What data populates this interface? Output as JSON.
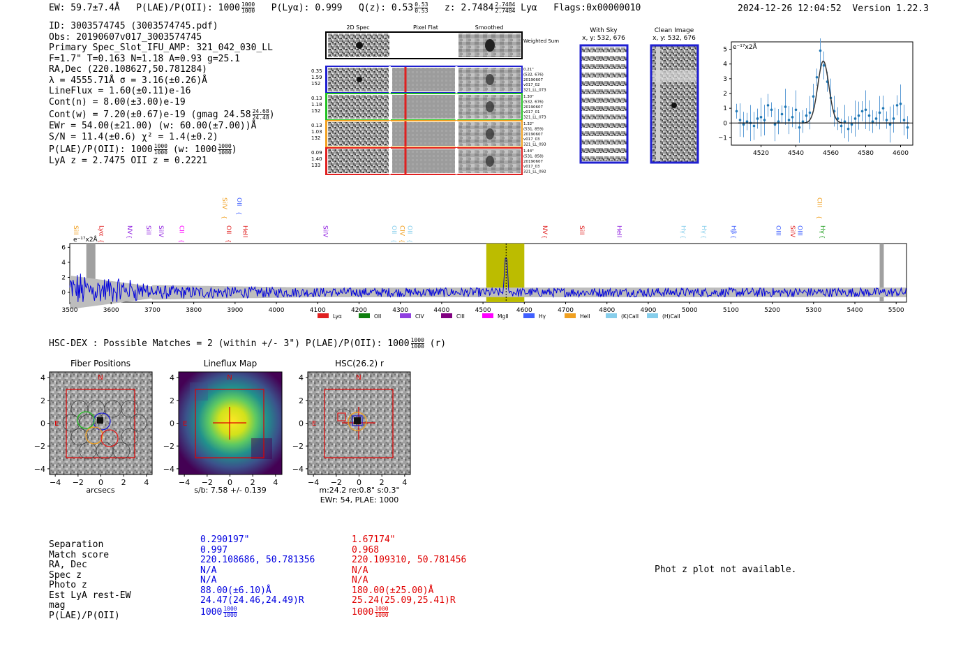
{
  "header": {
    "ew": "EW: 59.7±7.4Å",
    "plae_label": "P(LAE)/P(OII): 1000",
    "plae_hi": "1000",
    "plae_lo": "1000",
    "plya": "P(Lyα): 0.999",
    "qz_label": "Q(z): 0.53",
    "qz_hi": "0.53",
    "qz_lo": "0.53",
    "z_label": "z: 2.7484",
    "z_hi": "2.7484",
    "z_lo": "2.7484",
    "z_line": "Lyα",
    "flags": "Flags:0x00000010",
    "timestamp": "2024-12-26 12:04:52",
    "version": "Version 1.22.3"
  },
  "info": {
    "id": "ID: 3003574745 (3003574745.pdf)",
    "obs": "Obs: 20190607v017_3003574745",
    "primary": "Primary Spec_Slot_IFU_AMP: 321_042_030_LL",
    "params": "F=1.7\"  T=0.163  N=1.18  A=0.93  g=25.1",
    "radec": "RA,Dec (220.108627,50.781284)",
    "lambda": "λ = 4555.71Å  σ = 3.16(±0.26)Å",
    "lineflux": "LineFlux = 1.60(±0.11)e-16",
    "cont_n": "Cont(n) = 8.00(±3.00)e-19",
    "cont_w": "Cont(w) = 7.20(±0.67)e-19 (gmag 24.58",
    "gmag_hi": "24.68",
    "gmag_lo": "24.48",
    "ewr": "EWr = 54.00(±21.00) (w: 60.00(±7.00))Å",
    "sn": "S/N = 11.4(±0.6)  χ² = 1.4(±0.2)",
    "plae": "P(LAE)/P(OII): 1000",
    "plae_hi": "1000",
    "plae_lo": "1000",
    "plae_w": "(w: 1000",
    "plae_w_hi": "1000",
    "plae_w_lo": "1000",
    "lya_z": "LyA z = 2.7475  OII z = 0.2221"
  },
  "cutouts": {
    "col_labels": [
      "2D Spec",
      "Pixel Flat",
      "Smoothed"
    ],
    "weighted_sum": "Weighted Sum",
    "rows": [
      {
        "left": [
          "0.35",
          "1.59",
          "152"
        ],
        "right": [
          "0.21\"",
          "(532, 676)",
          "20190607",
          "v017_02",
          "321_LL_073"
        ],
        "color": "#1f1fd0"
      },
      {
        "left": [
          "0.13",
          "1.18",
          "152"
        ],
        "right": [
          "1.30\"",
          "(532, 676)",
          "20190607",
          "v017_01",
          "321_LL_073"
        ],
        "color": "#22c022"
      },
      {
        "left": [
          "0.13",
          "1.03",
          "132"
        ],
        "right": [
          "1.32\"",
          "(531, 859)",
          "20190607",
          "v017_03",
          "321_LL_093"
        ],
        "color": "#f0a020"
      },
      {
        "left": [
          "0.09",
          "1.40",
          "133"
        ],
        "right": [
          "1.44\"",
          "(531, 858)",
          "20190607",
          "v017_03",
          "321_LL_092"
        ],
        "color": "#e02020"
      }
    ],
    "with_sky": "With Sky",
    "clean_image": "Clean Image",
    "xy1": "x, y: 532, 676",
    "xy2": "x, y: 532, 676"
  },
  "zoom_chart": {
    "type": "scatter",
    "unit": "e⁻¹⁷x2Å",
    "xlim": [
      4503,
      4607
    ],
    "ylim": [
      -1.5,
      5.5
    ],
    "xticks": [
      "4520",
      "4540",
      "4560",
      "4580",
      "4600"
    ],
    "yticks": [
      "5",
      "4",
      "3",
      "2",
      "1",
      "0",
      "−1"
    ],
    "x": [
      4506,
      4508,
      4510,
      4512,
      4514,
      4516,
      4518,
      4520,
      4522,
      4524,
      4526,
      4528,
      4530,
      4532,
      4534,
      4536,
      4538,
      4540,
      4542,
      4544,
      4546,
      4548,
      4550,
      4552,
      4554,
      4556,
      4558,
      4560,
      4562,
      4564,
      4566,
      4568,
      4570,
      4572,
      4574,
      4576,
      4578,
      4580,
      4582,
      4584,
      4586,
      4588,
      4590,
      4592,
      4594,
      4596,
      4598,
      4600,
      4602,
      4604
    ],
    "y": [
      0.8,
      0.2,
      -0.1,
      0.1,
      0.0,
      -0.2,
      0.3,
      0.4,
      0.2,
      1.2,
      0.9,
      -0.1,
      0.1,
      0.6,
      1.1,
      0.2,
      0.4,
      0.9,
      -0.3,
      0.1,
      0.5,
      0.7,
      1.8,
      3.1,
      4.9,
      3.9,
      2.8,
      1.7,
      0.8,
      0.3,
      -0.2,
      0.1,
      -0.4,
      -0.1,
      0.3,
      0.5,
      0.8,
      0.9,
      0.5,
      0.1,
      0.3,
      0.7,
      1.0,
      0.2,
      -0.1,
      0.3,
      1.2,
      1.3,
      0.2,
      -0.3
    ],
    "fit_center": 4555.7,
    "fit_sigma": 3.16,
    "fit_amp": 4.2
  },
  "spectrum": {
    "type": "line",
    "unit": "e⁻¹⁷x2Å",
    "xlim": [
      3500,
      5525
    ],
    "ylim": [
      -1.3,
      6.5
    ],
    "xticks": [
      "3500",
      "3600",
      "3700",
      "3800",
      "3900",
      "4000",
      "4100",
      "4200",
      "4300",
      "4400",
      "4500",
      "4600",
      "4700",
      "4800",
      "4900",
      "5000",
      "5100",
      "5200",
      "5300",
      "5400",
      "5500"
    ],
    "yticks": [
      "6",
      "4",
      "2",
      "0"
    ],
    "highlight_range": [
      4508,
      4600
    ],
    "line_center": 4556,
    "line_peak": 4.9,
    "line_sigma": 3.2,
    "noise_level": 0.8,
    "lines": [
      {
        "name": "SiII",
        "x": 3510,
        "color": "#f0a020",
        "row": 1
      },
      {
        "name": "Lyα",
        "x": 3572,
        "color": "#e02020",
        "row": 1
      },
      {
        "name": "NV",
        "x": 3640,
        "color": "#9020e0",
        "row": 1
      },
      {
        "name": "SiII",
        "x": 3686,
        "color": "#9020e0",
        "row": 1
      },
      {
        "name": "SiIV",
        "x": 3716,
        "color": "#9020e0",
        "row": 1
      },
      {
        "name": "CII",
        "x": 3766,
        "color": "#ff00ff",
        "row": 1
      },
      {
        "name": "SiIV",
        "x": 3870,
        "color": "#f0a020",
        "row": 0
      },
      {
        "name": "OII",
        "x": 3880,
        "color": "#e02020",
        "row": 1
      },
      {
        "name": "OII",
        "x": 3905,
        "color": "#4060ff",
        "row": 0
      },
      {
        "name": "HeII",
        "x": 3920,
        "color": "#e02020",
        "row": 1
      },
      {
        "name": "SiIV",
        "x": 4114,
        "color": "#9020e0",
        "row": 1
      },
      {
        "name": "OII",
        "x": 4280,
        "color": "#87ceeb",
        "row": 1
      },
      {
        "name": "CIV",
        "x": 4300,
        "color": "#f0a020",
        "row": 1
      },
      {
        "name": "OII",
        "x": 4318,
        "color": "#87ceeb",
        "row": 1
      },
      {
        "name": "NV",
        "x": 4645,
        "color": "#e02020",
        "row": 1
      },
      {
        "name": "SiII",
        "x": 4735,
        "color": "#e02020",
        "row": 1
      },
      {
        "name": "HeII",
        "x": 4825,
        "color": "#9020e0",
        "row": 1
      },
      {
        "name": "Hγ",
        "x": 4980,
        "color": "#87ceeb",
        "row": 1
      },
      {
        "name": "Hγ",
        "x": 5030,
        "color": "#87ceeb",
        "row": 1
      },
      {
        "name": "Hβ",
        "x": 5102,
        "color": "#4060ff",
        "row": 1
      },
      {
        "name": "OIII",
        "x": 5210,
        "color": "#4060ff",
        "row": 1
      },
      {
        "name": "SiIV",
        "x": 5245,
        "color": "#e02020",
        "row": 1
      },
      {
        "name": "OIII",
        "x": 5262,
        "color": "#4060ff",
        "row": 1
      },
      {
        "name": "CIII",
        "x": 5310,
        "color": "#f0a020",
        "row": 0
      },
      {
        "name": "Hγ",
        "x": 5317,
        "color": "#22a022",
        "row": 1
      }
    ],
    "legend": [
      {
        "label": "Lyα",
        "color": "#e02020"
      },
      {
        "label": "OII",
        "color": "#108010"
      },
      {
        "label": "CIV",
        "color": "#9040e0"
      },
      {
        "label": "CIII",
        "color": "#800080"
      },
      {
        "label": "MgII",
        "color": "#ff00ff"
      },
      {
        "label": "Hγ",
        "color": "#4060ff"
      },
      {
        "label": "HeII",
        "color": "#f0a020"
      },
      {
        "label": "(K)CaII",
        "color": "#87ceeb"
      },
      {
        "label": "(H)CaII",
        "color": "#87ceeb"
      }
    ]
  },
  "hsc": {
    "title": "HSC-DEX : Possible Matches = 2 (within +/- 3\")  P(LAE)/P(OII): 1000",
    "title_hi": "1000",
    "title_lo": "1000",
    "title_suffix": "(r)"
  },
  "panels": {
    "fiber_title": "Fiber Positions",
    "lineflux_title": "Lineflux Map",
    "hsc_title": "HSC(26.2) r",
    "xlabel1": "arcsecs",
    "xlabel2": "s/b: 7.58 +/- 0.139",
    "xlabel3a": "m:24.2  re:0.8\"  s:0.3\"",
    "xlabel3b": "EWr: 54, PLAE: 1000",
    "ticks": [
      "4",
      "2",
      "0",
      "−2",
      "−4"
    ],
    "xticks": [
      "−4",
      "−2",
      "0",
      "2",
      "4"
    ],
    "north": "N",
    "east": "E"
  },
  "table": {
    "labels": [
      "Separation",
      "Match score",
      "RA, Dec",
      "Spec z",
      "Photo z",
      "Est LyA rest-EW",
      "mag",
      "P(LAE)/P(OII)"
    ],
    "col1": [
      "0.290197\"",
      "0.997",
      "220.108686, 50.781356",
      "N/A",
      "N/A",
      "88.00(±6.10)Å",
      "24.47(24.46,24.49)R",
      "1000"
    ],
    "col1_hi": "1000",
    "col1_lo": "1000",
    "col2": [
      "1.67174\"",
      "0.968",
      "220.109310, 50.781456",
      "N/A",
      "N/A",
      "180.00(±25.00)Å",
      "25.24(25.09,25.41)R",
      "1000"
    ],
    "col2_hi": "1000",
    "col2_lo": "1000",
    "colors": {
      "col1": "#0000e0",
      "col2": "#e00000"
    }
  },
  "photz": "Phot z plot not available."
}
